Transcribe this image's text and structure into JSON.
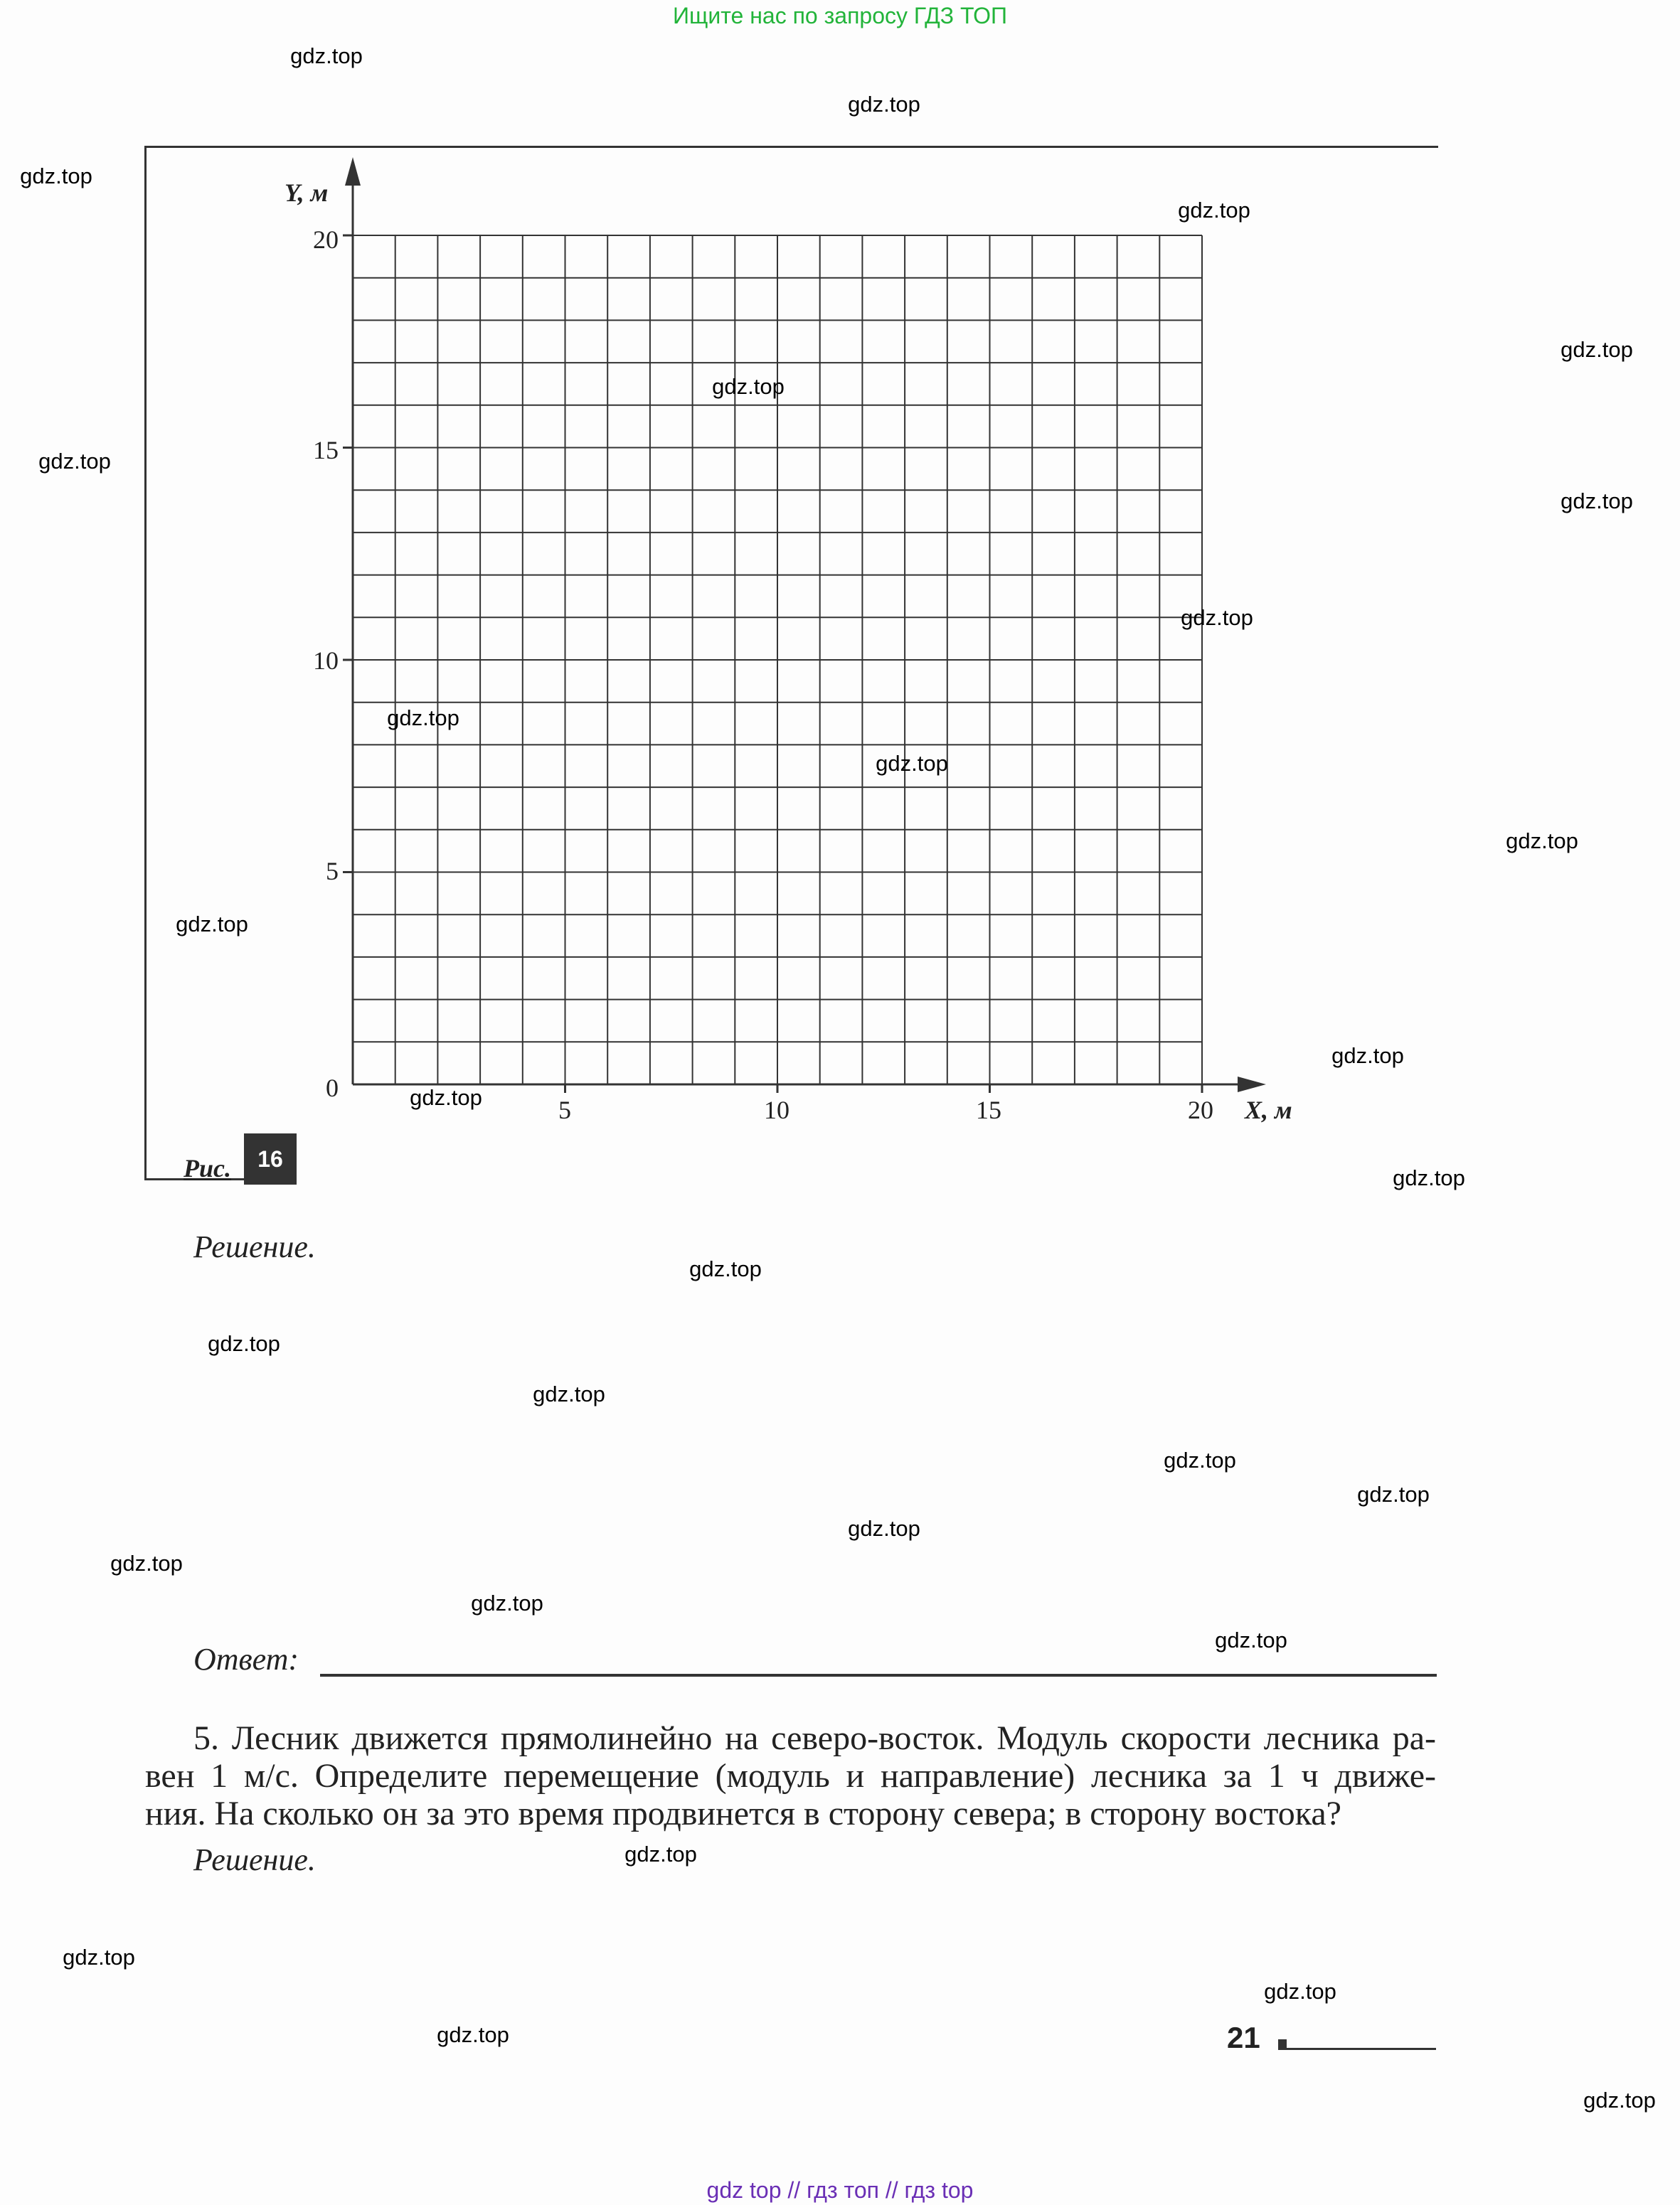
{
  "banner": "Ищите нас по запросу ГДЗ ТОП",
  "footer": "gdz top  //  гдз топ  //  гдз top",
  "watermark": "gdz.top",
  "figure": {
    "y_axis_label": "Y, м",
    "x_axis_label": "X, м",
    "y_ticks": [
      "20",
      "15",
      "10",
      "5",
      "0"
    ],
    "x_ticks": [
      "5",
      "10",
      "15",
      "20"
    ],
    "grid": {
      "x_range": [
        0,
        20
      ],
      "y_range": [
        0,
        20
      ],
      "cell": 1
    },
    "caption": "Рис.",
    "number": "16"
  },
  "solution_label_1": "Решение.",
  "answer_label": "Ответ:",
  "problem5": {
    "lines": [
      "5. Лесник движется прямолинейно на северо-восток. Модуль скорости лесника ра-",
      "вен 1 м/с. Определите перемещение (модуль и направление) лесника за 1 ч движе-",
      "ния. На сколько он за это время продвинется в сторону севера; в сторону востока?"
    ]
  },
  "solution_label_2": "Решение.",
  "page_number": "21"
}
